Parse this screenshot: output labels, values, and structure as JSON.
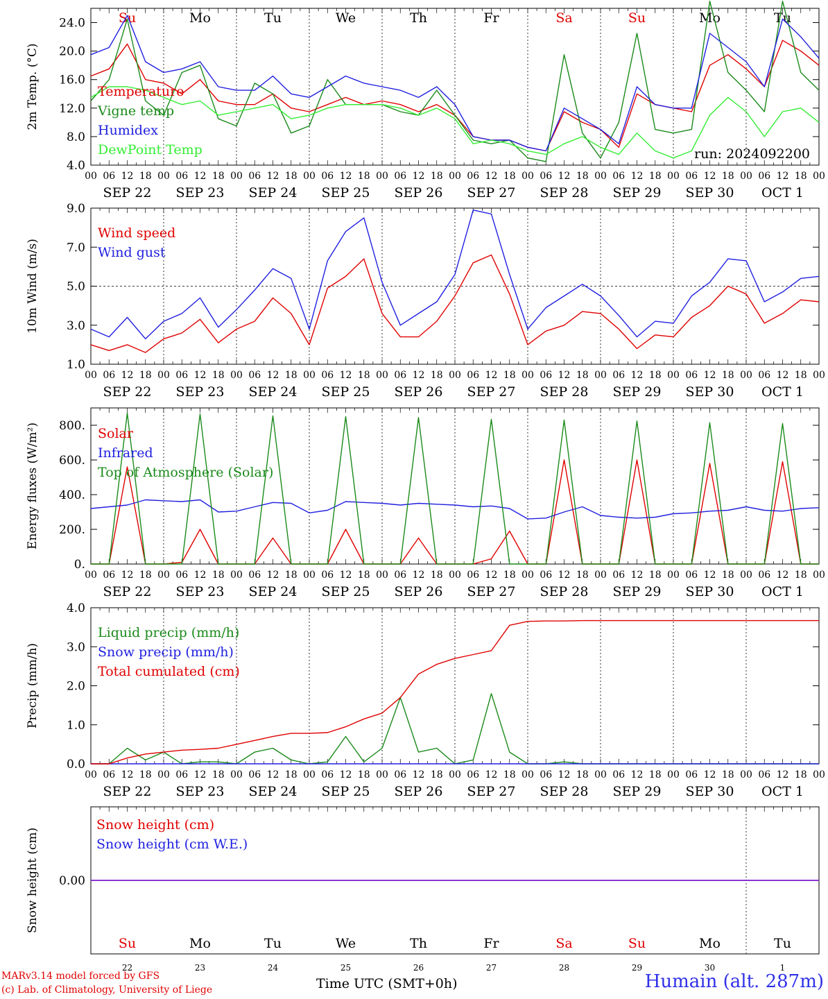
{
  "run_label": "run: 2024092200",
  "footer": {
    "credit_line1": "MARv3.14 model forced by GFS",
    "credit_line2": "(c) Lab. of Climatology, University of Liege",
    "time_axis": "Time UTC (SMT+0h)",
    "location": "Humain (alt. 287m)"
  },
  "days": {
    "weekdays": [
      "Su",
      "Mo",
      "Tu",
      "We",
      "Th",
      "Fr",
      "Sa",
      "Su",
      "Mo",
      "Tu"
    ],
    "weekday_colors": [
      "#e00000",
      "#000000",
      "#000000",
      "#000000",
      "#000000",
      "#000000",
      "#e00000",
      "#e00000",
      "#000000",
      "#000000"
    ],
    "dates": [
      "SEP 22",
      "SEP 23",
      "SEP 24",
      "SEP 25",
      "SEP 26",
      "SEP 27",
      "SEP 28",
      "SEP 29",
      "SEP 30",
      "OCT  1"
    ],
    "day_numbers": [
      "22",
      "23",
      "24",
      "25",
      "26",
      "27",
      "28",
      "29",
      "30",
      "1"
    ],
    "hour_ticks": [
      "00",
      "06",
      "12",
      "18"
    ]
  },
  "chart_data": [
    {
      "type": "line",
      "ylabel": "2m Temp. (°C)",
      "ylim": [
        4,
        26
      ],
      "yticks": [
        "4.0",
        "8.0",
        "12.0",
        "16.0",
        "20.0",
        "24.0"
      ],
      "x_hours": [
        0,
        6,
        12,
        18,
        24,
        30,
        36,
        42,
        48,
        54,
        60,
        66,
        72,
        78,
        84,
        90,
        96,
        102,
        108,
        114,
        120,
        126,
        132,
        138,
        144,
        150,
        156,
        162,
        168,
        174,
        180,
        186,
        192,
        198,
        204,
        210,
        216,
        222,
        228,
        234,
        240
      ],
      "series": [
        {
          "name": "Temperature",
          "color": "#e00000",
          "values": [
            16.5,
            17.5,
            21,
            16,
            15.5,
            14,
            16,
            13,
            12.5,
            12.5,
            14,
            12,
            11.5,
            12.5,
            13.5,
            12.5,
            13,
            12.5,
            11.5,
            12.5,
            11,
            8,
            7.5,
            7.5,
            6.5,
            6,
            11.5,
            10,
            9,
            6.5,
            14,
            12.5,
            12,
            11.5,
            18,
            19.5,
            17.5,
            15,
            21.5,
            20,
            18
          ]
        },
        {
          "name": "Vigne temp",
          "color": "#1a8a1a",
          "values": [
            13,
            16,
            24.5,
            13,
            11,
            17,
            18,
            10.5,
            9.5,
            15.5,
            14,
            8.5,
            9.5,
            16,
            12.5,
            12.5,
            12.5,
            11.5,
            11,
            14.5,
            11,
            7.5,
            7,
            7.5,
            5,
            4.5,
            19.5,
            8.5,
            5,
            10,
            22.5,
            9,
            8.5,
            9,
            27,
            17,
            14.5,
            11.5,
            27,
            17,
            14.5
          ]
        },
        {
          "name": "Humidex",
          "color": "#2020e0",
          "values": [
            19.5,
            20.5,
            25,
            18.5,
            17,
            17.5,
            18.5,
            15,
            14.5,
            14.5,
            16.5,
            14,
            13.5,
            15,
            16.5,
            15.5,
            15,
            14.5,
            13.5,
            15,
            12.5,
            8,
            7.5,
            7.5,
            6.5,
            6,
            12,
            10.5,
            9,
            7,
            15,
            12.5,
            12,
            12,
            22.5,
            20.5,
            18.5,
            15,
            24.5,
            22,
            19
          ]
        },
        {
          "name": "DewPoint Temp",
          "color": "#33ee33",
          "values": [
            13.5,
            15,
            15,
            14.5,
            13.5,
            12.5,
            13,
            11,
            11.5,
            12,
            12.5,
            10.5,
            11,
            12,
            12.5,
            12.5,
            12.5,
            12,
            11,
            12,
            10.5,
            7,
            7.5,
            7,
            6,
            5.5,
            7,
            8,
            6.5,
            5.5,
            8.5,
            6,
            5,
            6,
            11,
            13.5,
            11.5,
            8,
            11.5,
            12,
            10
          ]
        }
      ]
    },
    {
      "type": "line",
      "ylabel": "10m Wind (m/s)",
      "ylim": [
        1,
        9
      ],
      "yticks": [
        "1.0",
        "3.0",
        "5.0",
        "7.0",
        "9.0"
      ],
      "dashed_y": 5,
      "x_hours": [
        0,
        6,
        12,
        18,
        24,
        30,
        36,
        42,
        48,
        54,
        60,
        66,
        72,
        78,
        84,
        90,
        96,
        102,
        108,
        114,
        120,
        126,
        132,
        138,
        144,
        150,
        156,
        162,
        168,
        174,
        180,
        186,
        192,
        198,
        204,
        210,
        216,
        222,
        228,
        234,
        240
      ],
      "series": [
        {
          "name": "Wind speed",
          "color": "#e00000",
          "values": [
            2.0,
            1.7,
            2.0,
            1.6,
            2.3,
            2.6,
            3.3,
            2.1,
            2.8,
            3.2,
            4.4,
            3.6,
            2.0,
            4.9,
            5.5,
            6.4,
            3.6,
            2.4,
            2.4,
            3.2,
            4.5,
            6.2,
            6.6,
            4.6,
            2.0,
            2.7,
            3.0,
            3.7,
            3.6,
            2.8,
            1.8,
            2.5,
            2.4,
            3.4,
            4.0,
            5.0,
            4.6,
            3.1,
            3.6,
            4.3,
            4.2
          ]
        },
        {
          "name": "Wind gust",
          "color": "#2020e0",
          "values": [
            2.8,
            2.4,
            3.4,
            2.3,
            3.2,
            3.6,
            4.4,
            2.9,
            3.8,
            4.8,
            5.9,
            5.4,
            2.8,
            6.3,
            7.8,
            8.5,
            5.2,
            3.0,
            3.6,
            4.2,
            5.6,
            8.9,
            8.7,
            5.6,
            2.8,
            3.9,
            4.5,
            5.1,
            4.5,
            3.5,
            2.4,
            3.2,
            3.1,
            4.5,
            5.2,
            6.4,
            6.3,
            4.2,
            4.7,
            5.4,
            5.5
          ]
        }
      ]
    },
    {
      "type": "line",
      "ylabel": "Energy fluxes (W/m²)",
      "ylim": [
        0,
        900
      ],
      "yticks": [
        "0.",
        "200.",
        "400.",
        "600.",
        "800."
      ],
      "x_hours": [
        0,
        6,
        12,
        18,
        24,
        30,
        36,
        42,
        48,
        54,
        60,
        66,
        72,
        78,
        84,
        90,
        96,
        102,
        108,
        114,
        120,
        126,
        132,
        138,
        144,
        150,
        156,
        162,
        168,
        174,
        180,
        186,
        192,
        198,
        204,
        210,
        216,
        222,
        228,
        234,
        240
      ],
      "series": [
        {
          "name": "Solar",
          "color": "#e00000",
          "values": [
            0,
            0,
            560,
            0,
            0,
            10,
            200,
            0,
            0,
            0,
            150,
            0,
            0,
            0,
            200,
            0,
            0,
            0,
            150,
            0,
            0,
            0,
            30,
            190,
            0,
            0,
            600,
            0,
            0,
            0,
            600,
            0,
            0,
            0,
            580,
            0,
            0,
            0,
            590,
            0,
            0
          ]
        },
        {
          "name": "Infrared",
          "color": "#2020e0",
          "values": [
            320,
            330,
            340,
            370,
            365,
            360,
            370,
            300,
            305,
            330,
            355,
            350,
            295,
            310,
            360,
            355,
            350,
            340,
            350,
            345,
            340,
            330,
            335,
            320,
            260,
            265,
            300,
            330,
            280,
            270,
            265,
            270,
            290,
            295,
            305,
            310,
            330,
            310,
            305,
            320,
            325
          ]
        },
        {
          "name": "Top of Atmosphere (Solar)",
          "color": "#1a8a1a",
          "values": [
            0,
            0,
            870,
            0,
            0,
            0,
            865,
            0,
            0,
            0,
            855,
            0,
            0,
            0,
            850,
            0,
            0,
            0,
            845,
            0,
            0,
            0,
            835,
            0,
            0,
            0,
            830,
            0,
            0,
            0,
            825,
            0,
            0,
            0,
            815,
            0,
            0,
            0,
            810,
            0,
            0
          ]
        }
      ]
    },
    {
      "type": "line",
      "ylabel": "Precip (mm/h)",
      "ylim": [
        0,
        4
      ],
      "yticks": [
        "0.0",
        "1.0",
        "2.0",
        "3.0",
        "4.0"
      ],
      "x_hours": [
        0,
        6,
        12,
        18,
        24,
        30,
        36,
        42,
        48,
        54,
        60,
        66,
        72,
        78,
        84,
        90,
        96,
        102,
        108,
        114,
        120,
        126,
        132,
        138,
        144,
        150,
        156,
        162,
        168,
        174,
        180,
        186,
        192,
        198,
        204,
        210,
        216,
        222,
        228,
        234,
        240
      ],
      "series": [
        {
          "name": "Liquid precip (mm/h)",
          "color": "#1a8a1a",
          "values": [
            0,
            0,
            0.4,
            0.1,
            0.3,
            0,
            0.05,
            0.05,
            0,
            0.3,
            0.4,
            0.1,
            0,
            0.05,
            0.7,
            0.05,
            0.4,
            1.7,
            0.3,
            0.4,
            0,
            0.1,
            1.8,
            0.3,
            0,
            0,
            0.05,
            0,
            0,
            0,
            0,
            0,
            0,
            0,
            0,
            0,
            0,
            0,
            0,
            0,
            0
          ]
        },
        {
          "name": "Snow precip (mm/h)",
          "color": "#2020e0",
          "values": [
            0,
            0,
            0,
            0,
            0,
            0,
            0,
            0,
            0,
            0,
            0,
            0,
            0,
            0,
            0,
            0,
            0,
            0,
            0,
            0,
            0,
            0,
            0,
            0,
            0,
            0,
            0,
            0,
            0,
            0,
            0,
            0,
            0,
            0,
            0,
            0,
            0,
            0,
            0,
            0,
            0
          ]
        },
        {
          "name": "Total cumulated (cm)",
          "color": "#e00000",
          "values": [
            0,
            0,
            0.15,
            0.25,
            0.3,
            0.35,
            0.37,
            0.4,
            0.5,
            0.6,
            0.7,
            0.78,
            0.78,
            0.8,
            0.95,
            1.15,
            1.3,
            1.7,
            2.3,
            2.55,
            2.7,
            2.8,
            2.9,
            3.55,
            3.65,
            3.66,
            3.66,
            3.67,
            3.67,
            3.67,
            3.67,
            3.67,
            3.67,
            3.67,
            3.67,
            3.67,
            3.67,
            3.67,
            3.67,
            3.67,
            3.67
          ]
        }
      ]
    },
    {
      "type": "line",
      "ylabel": "Snow height (cm)",
      "ylim": [
        -1,
        1
      ],
      "yticks": [
        "0.00"
      ],
      "x_hours": [
        0,
        240
      ],
      "series": [
        {
          "name": "Snow height (cm)",
          "color": "#e00000",
          "values": [
            0,
            0
          ]
        },
        {
          "name": "Snow height (cm W.E.)",
          "color": "#2020e0",
          "values": [
            0,
            0
          ]
        }
      ]
    }
  ]
}
